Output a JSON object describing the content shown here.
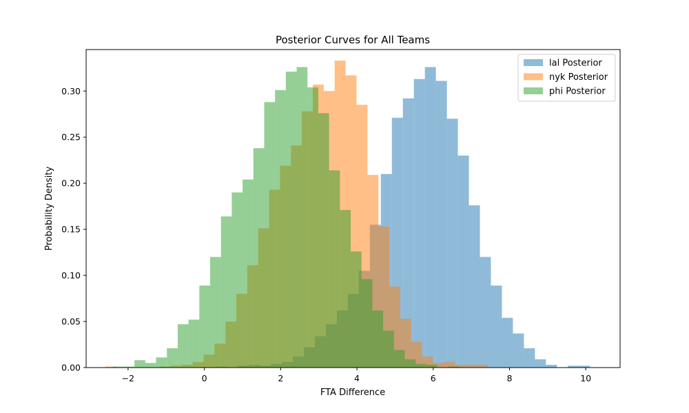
{
  "chart_data": {
    "type": "histogram",
    "title": "Posterior Curves for All Teams",
    "xlabel": "FTA Difference",
    "ylabel": "Probability Density",
    "xlim": [
      -3.1,
      10.9
    ],
    "ylim": [
      0,
      0.345
    ],
    "xticks": [
      {
        "value": -2,
        "label": "−2"
      },
      {
        "value": 0,
        "label": "0"
      },
      {
        "value": 2,
        "label": "2"
      },
      {
        "value": 4,
        "label": "4"
      },
      {
        "value": 6,
        "label": "6"
      },
      {
        "value": 8,
        "label": "8"
      },
      {
        "value": 10,
        "label": "10"
      }
    ],
    "yticks": [
      {
        "value": 0.0,
        "label": "0.00"
      },
      {
        "value": 0.05,
        "label": "0.05"
      },
      {
        "value": 0.1,
        "label": "0.10"
      },
      {
        "value": 0.15,
        "label": "0.15"
      },
      {
        "value": 0.2,
        "label": "0.20"
      },
      {
        "value": 0.25,
        "label": "0.25"
      },
      {
        "value": 0.3,
        "label": "0.30"
      }
    ],
    "grid": false,
    "legend_position": "top-right",
    "alpha": 0.5,
    "series": [
      {
        "name": "lal Posterior",
        "color": "#1f77b4",
        "bin_start": 0.3,
        "bin_width": 0.2885,
        "values": [
          0.001,
          0,
          0.002,
          0.003,
          0.002,
          0.004,
          0.006,
          0.012,
          0.022,
          0.034,
          0.047,
          0.062,
          0.08,
          0.105,
          0.155,
          0.21,
          0.271,
          0.292,
          0.313,
          0.326,
          0.311,
          0.27,
          0.23,
          0.176,
          0.12,
          0.089,
          0.054,
          0.037,
          0.021,
          0.009,
          0.003,
          0,
          0.002,
          0.002
        ]
      },
      {
        "name": "nyk Posterior",
        "color": "#ff7f0e",
        "bin_start": -2.6,
        "bin_width": 0.2865,
        "values": [
          0.001,
          0,
          0,
          0,
          0,
          0.001,
          0.002,
          0.003,
          0.006,
          0.014,
          0.026,
          0.05,
          0.08,
          0.111,
          0.151,
          0.193,
          0.219,
          0.241,
          0.278,
          0.307,
          0.3,
          0.333,
          0.317,
          0.285,
          0.209,
          0.153,
          0.088,
          0.053,
          0.028,
          0.012,
          0.005,
          0.006,
          0.003,
          0.003,
          0.003
        ]
      },
      {
        "name": "phi Posterior",
        "color": "#2ca02c",
        "bin_start": -2.4,
        "bin_width": 0.2835,
        "values": [
          0.001,
          0.001,
          0.008,
          0.005,
          0.011,
          0.021,
          0.047,
          0.052,
          0.089,
          0.12,
          0.164,
          0.19,
          0.204,
          0.238,
          0.288,
          0.301,
          0.321,
          0.326,
          0.304,
          0.276,
          0.214,
          0.171,
          0.126,
          0.096,
          0.062,
          0.04,
          0.019,
          0.009,
          0.004,
          0.003,
          0,
          0.001
        ]
      }
    ]
  }
}
